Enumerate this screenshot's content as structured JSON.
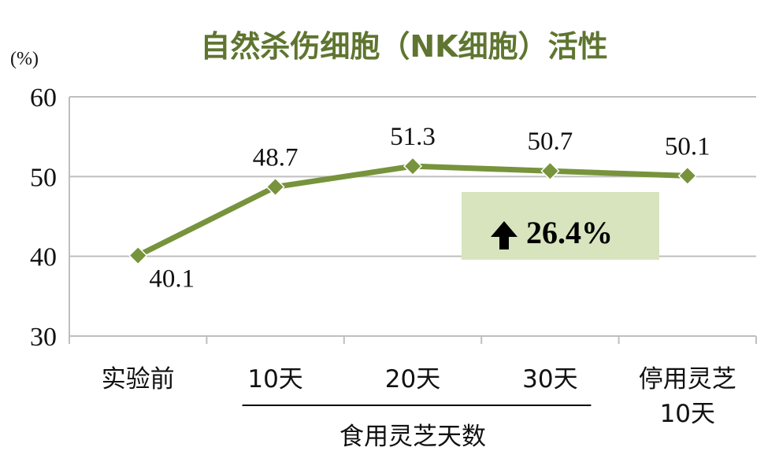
{
  "colors": {
    "series": "#77933c",
    "title": "#5f7530",
    "grid": "#bfbfbf",
    "annotation_bg": "#d7e4bd"
  },
  "chart_data": {
    "type": "line",
    "title": "自然杀伤细胞（NK细胞）活性",
    "ylabel": "(%)",
    "xlabel": "",
    "ylim": [
      30,
      60
    ],
    "yticks": [
      30,
      40,
      50,
      60
    ],
    "grid": true,
    "categories": [
      "实验前",
      "10天",
      "20天",
      "30天",
      "停用灵芝10天"
    ],
    "category_lines": [
      [
        "实验前"
      ],
      [
        "10天"
      ],
      [
        "20天"
      ],
      [
        "30天"
      ],
      [
        "停用灵芝",
        "10天"
      ]
    ],
    "group_label": "食用灵芝天数",
    "series": [
      {
        "values": [
          40.1,
          48.7,
          51.3,
          50.7,
          50.1
        ],
        "labels": [
          "40.1",
          "48.7",
          "51.3",
          "50.7",
          "50.1"
        ]
      }
    ],
    "annotation": {
      "arrow": "up-arrow",
      "text": "26.4%"
    }
  }
}
